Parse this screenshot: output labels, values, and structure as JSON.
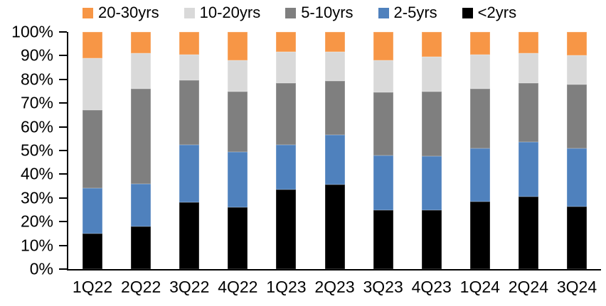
{
  "chart_data": {
    "type": "bar",
    "stacked": true,
    "percent_stacked": true,
    "title": "",
    "xlabel": "",
    "ylabel": "",
    "grid": false,
    "legend_position": "top",
    "legend_order": [
      "20-30yrs",
      "10-20yrs",
      "5-10yrs",
      "2-5yrs",
      "<2yrs"
    ],
    "categories": [
      "1Q22",
      "2Q22",
      "3Q22",
      "4Q22",
      "1Q23",
      "2Q23",
      "3Q23",
      "4Q23",
      "1Q24",
      "2Q24",
      "3Q24"
    ],
    "series": [
      {
        "name": "<2yrs",
        "color": "#000000",
        "values": [
          15,
          18,
          28,
          26,
          33.5,
          35.5,
          25,
          25,
          28.5,
          30.5,
          26.5
        ]
      },
      {
        "name": "2-5yrs",
        "color": "#4F81BD",
        "values": [
          19,
          18,
          24.5,
          23.5,
          19,
          21,
          23,
          22.5,
          22.5,
          23,
          24.5
        ]
      },
      {
        "name": "5-10yrs",
        "color": "#7F7F7F",
        "values": [
          33,
          40,
          27,
          25.5,
          26,
          23,
          26.5,
          27.5,
          25,
          25,
          27
        ]
      },
      {
        "name": "10-20yrs",
        "color": "#D9D9D9",
        "values": [
          22,
          15,
          11,
          13,
          13,
          12,
          13.5,
          14.5,
          14.5,
          12.5,
          12
        ]
      },
      {
        "name": "20-30yrs",
        "color": "#F79646",
        "values": [
          11,
          9,
          9.5,
          12,
          8.5,
          8.5,
          12,
          10.5,
          9.5,
          9,
          10
        ]
      }
    ],
    "y_axis": {
      "min": 0,
      "max": 100,
      "step": 10,
      "tick_labels": [
        "0%",
        "10%",
        "20%",
        "30%",
        "40%",
        "50%",
        "60%",
        "70%",
        "80%",
        "90%",
        "100%"
      ]
    },
    "colors": {
      "axis": "#000000",
      "background": "#ffffff",
      "text": "#000000"
    }
  }
}
